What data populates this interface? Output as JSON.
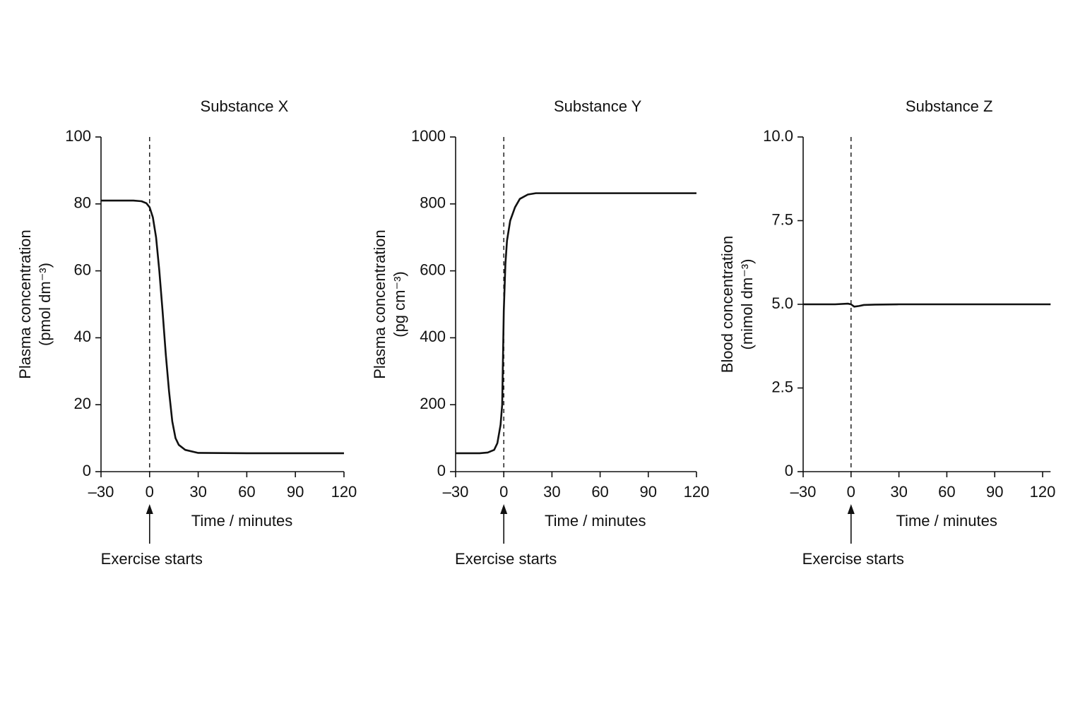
{
  "chart_data": [
    {
      "type": "line",
      "title": "Substance X",
      "xlabel": "Time / minutes",
      "ylabel": [
        "Plasma concentration",
        "(pmol dm⁻³)"
      ],
      "annotation": {
        "text": "Exercise starts",
        "x": 0
      },
      "color": "#111111",
      "x": [
        -30,
        -10,
        -5,
        -2,
        0,
        2,
        4,
        6,
        8,
        10,
        12,
        14,
        16,
        18,
        22,
        30,
        60,
        120
      ],
      "values": [
        81,
        81,
        80.8,
        80.2,
        79,
        76,
        70,
        60,
        48,
        35,
        24,
        15,
        10,
        8,
        6.5,
        5.6,
        5.5,
        5.5
      ],
      "xlim": [
        -30,
        120
      ],
      "xticks": [
        {
          "value": -30,
          "label": "–30"
        },
        0,
        30,
        60,
        90,
        120
      ],
      "ylim": [
        0,
        100
      ],
      "yticks": [
        0,
        20,
        40,
        60,
        80,
        100
      ]
    },
    {
      "type": "line",
      "title": "Substance Y",
      "xlabel": "Time / minutes",
      "ylabel": [
        "Plasma concentration",
        "(pg cm⁻³)"
      ],
      "annotation": {
        "text": "Exercise starts",
        "x": 0
      },
      "color": "#111111",
      "x": [
        -30,
        -15,
        -10,
        -6,
        -4,
        -2,
        -1,
        0,
        1,
        2,
        4,
        7,
        10,
        15,
        20,
        120
      ],
      "values": [
        55,
        55,
        57,
        65,
        85,
        140,
        200,
        480,
        620,
        690,
        750,
        790,
        815,
        828,
        832,
        832
      ],
      "xlim": [
        -30,
        120
      ],
      "xticks": [
        {
          "value": -30,
          "label": "–30"
        },
        0,
        30,
        60,
        90,
        120
      ],
      "ylim": [
        0,
        1000
      ],
      "yticks": [
        0,
        200,
        400,
        600,
        800,
        1000
      ]
    },
    {
      "type": "line",
      "title": "Substance Z",
      "xlabel": "Time / minutes",
      "ylabel": [
        "Blood concentration",
        "(mimol dm⁻³)"
      ],
      "annotation": {
        "text": "Exercise starts",
        "x": 0
      },
      "color": "#111111",
      "x": [
        -30,
        -10,
        -2,
        0,
        2,
        5,
        8,
        15,
        30,
        125
      ],
      "values": [
        5.0,
        5.0,
        5.02,
        5.0,
        4.93,
        4.95,
        4.98,
        4.99,
        5.0,
        5.0
      ],
      "xlim": [
        -30,
        125
      ],
      "xticks": [
        {
          "value": -30,
          "label": "–30"
        },
        0,
        30,
        60,
        90,
        120
      ],
      "ylim": [
        0,
        10
      ],
      "yticks": [
        0,
        {
          "value": 2.5,
          "label": "2.5"
        },
        {
          "value": 5,
          "label": "5.0"
        },
        {
          "value": 7.5,
          "label": "7.5"
        },
        {
          "value": 10,
          "label": "10.0"
        }
      ]
    }
  ]
}
